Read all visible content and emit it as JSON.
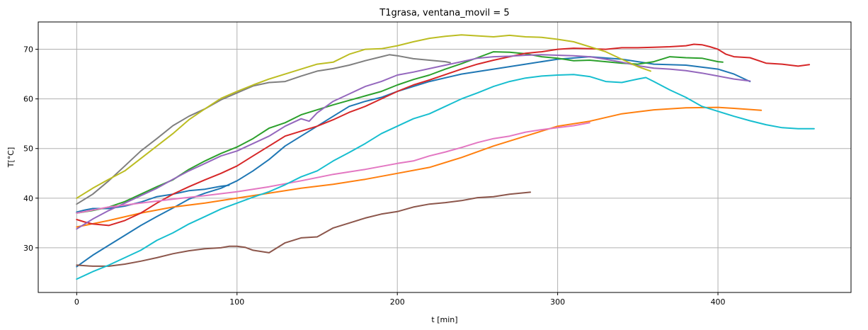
{
  "chart_data": {
    "type": "line",
    "title": "T1grasa, ventana_movil = 5",
    "xlabel": "t [min]",
    "ylabel": "T[°C]",
    "xlim": [
      -24,
      483
    ],
    "ylim": [
      21,
      75.5
    ],
    "xticks": [
      0,
      100,
      200,
      300,
      400
    ],
    "yticks": [
      30,
      40,
      50,
      60,
      70
    ],
    "grid": true,
    "series": [
      {
        "color": "#1f77b4",
        "x": [
          0,
          5,
          10,
          20,
          30,
          40,
          50,
          60,
          70,
          80,
          90,
          95
        ],
        "y": [
          37.2,
          37.6,
          37.9,
          37.9,
          38.4,
          39.2,
          40.3,
          40.8,
          41.5,
          41.8,
          42.4,
          42.6
        ]
      },
      {
        "color": "#1f77b4",
        "x": [
          0,
          10,
          20,
          30,
          40,
          50,
          60,
          70,
          80,
          90,
          100,
          110,
          120,
          130,
          140,
          150,
          160,
          170,
          180,
          190,
          200,
          220,
          240,
          260,
          280,
          300,
          320,
          340,
          360,
          380,
          400,
          410,
          420
        ],
        "y": [
          26.2,
          28.5,
          30.5,
          32.5,
          34.5,
          36.3,
          38,
          39.8,
          41,
          42,
          43.5,
          45.5,
          47.8,
          50.5,
          52.5,
          54.5,
          56.5,
          58.5,
          59.5,
          60.3,
          61.5,
          63.5,
          65,
          66,
          67,
          68,
          68.5,
          68,
          67,
          66.8,
          66,
          65,
          63.5
        ]
      },
      {
        "color": "#ff7f0e",
        "x": [
          0,
          20,
          40,
          60,
          80,
          100,
          120,
          140,
          160,
          180,
          200,
          220,
          240,
          260,
          280,
          300,
          320,
          340,
          360,
          380,
          400,
          410,
          427
        ],
        "y": [
          34.2,
          35.5,
          37,
          38.2,
          39.0,
          40.0,
          41.0,
          42.0,
          42.8,
          43.8,
          45.0,
          46.2,
          48.2,
          50.5,
          52.5,
          54.5,
          55.5,
          57,
          57.8,
          58.2,
          58.3,
          58.1,
          57.7
        ]
      },
      {
        "color": "#2ca02c",
        "x": [
          0,
          10,
          20,
          30,
          40,
          50,
          60,
          70,
          80,
          90,
          100,
          110,
          120,
          130,
          140,
          150,
          160,
          170,
          180,
          190,
          200,
          210,
          220,
          230,
          240,
          250,
          260,
          270,
          280,
          290,
          300,
          310,
          320,
          330,
          340,
          350,
          360,
          370,
          380,
          390,
          400,
          403
        ],
        "y": [
          37,
          37.5,
          38.2,
          39.3,
          40.8,
          42.3,
          43.7,
          45.8,
          47.5,
          49,
          50.3,
          52,
          54.1,
          55.2,
          56.8,
          57.8,
          58.8,
          59.7,
          60.6,
          61.5,
          62.8,
          63.9,
          64.8,
          66.0,
          67.1,
          68.3,
          69.5,
          69.4,
          69.1,
          68.5,
          68.2,
          67.7,
          67.8,
          67.5,
          67.2,
          67.0,
          67.5,
          68.5,
          68.3,
          68.2,
          67.5,
          67.4
        ]
      },
      {
        "color": "#d62728",
        "x": [
          0,
          5,
          10,
          20,
          30,
          40,
          50,
          60,
          70,
          80,
          90,
          100,
          110,
          120,
          130,
          140,
          150,
          160,
          170,
          180,
          190,
          200,
          210,
          220,
          230,
          240,
          250,
          260,
          270,
          280,
          290,
          300,
          310,
          320,
          330,
          340,
          350,
          360,
          370,
          380,
          385,
          390,
          395,
          400,
          405,
          410,
          420,
          430,
          440,
          450,
          457
        ],
        "y": [
          35.7,
          35.2,
          34.8,
          34.5,
          35.5,
          37,
          39,
          40.8,
          42.3,
          43.7,
          45,
          46.5,
          48.5,
          50.5,
          52.5,
          53.5,
          54.5,
          55.8,
          57.3,
          58.5,
          60,
          61.5,
          62.8,
          63.8,
          64.9,
          66,
          67,
          67.8,
          68.5,
          69.2,
          69.5,
          70,
          70.2,
          70.1,
          70,
          70.3,
          70.3,
          70.4,
          70.5,
          70.7,
          71,
          70.9,
          70.5,
          70,
          69,
          68.5,
          68.3,
          67.2,
          67,
          66.6,
          66.9
        ]
      },
      {
        "color": "#9467bd",
        "x": [
          0,
          10,
          20,
          30,
          40,
          50,
          60,
          70,
          80,
          90,
          100,
          110,
          120,
          130,
          140,
          145,
          150,
          160,
          170,
          180,
          190,
          200,
          210,
          220,
          230,
          240,
          250,
          260,
          270,
          280,
          290,
          300,
          310,
          320,
          330,
          340,
          350,
          360,
          370,
          380,
          390,
          400,
          410,
          420
        ],
        "y": [
          33.8,
          35.8,
          37.5,
          39,
          40.5,
          42,
          43.8,
          45.5,
          47,
          48.5,
          49.5,
          51,
          52.5,
          54.5,
          56,
          55.5,
          57.2,
          59.5,
          61,
          62.5,
          63.5,
          64.8,
          65.4,
          66.1,
          66.8,
          67.5,
          68.2,
          68.5,
          68.6,
          68.8,
          68.9,
          68.8,
          68.7,
          68.5,
          68.0,
          67.4,
          66.7,
          66.2,
          66.0,
          65.7,
          65.2,
          64.6,
          64.0,
          63.6
        ]
      },
      {
        "color": "#8c564b",
        "x": [
          0,
          10,
          20,
          30,
          40,
          50,
          60,
          70,
          80,
          90,
          95,
          100,
          105,
          110,
          120,
          130,
          140,
          150,
          160,
          170,
          180,
          190,
          200,
          210,
          220,
          230,
          240,
          250,
          260,
          270,
          283
        ],
        "y": [
          26.5,
          26.3,
          26.3,
          26.7,
          27.3,
          28,
          28.8,
          29.4,
          29.8,
          30.0,
          30.3,
          30.3,
          30.1,
          29.5,
          29.0,
          31.0,
          32.0,
          32.2,
          34.0,
          35.0,
          36.0,
          36.8,
          37.3,
          38.2,
          38.8,
          39.1,
          39.5,
          40.1,
          40.3,
          40.8,
          41.2
        ]
      },
      {
        "color": "#e377c2",
        "x": [
          0,
          20,
          40,
          60,
          80,
          100,
          120,
          140,
          160,
          180,
          200,
          210,
          220,
          230,
          240,
          250,
          260,
          270,
          280,
          290,
          300,
          310,
          320
        ],
        "y": [
          37,
          38.2,
          39.0,
          39.8,
          40.5,
          41.3,
          42.3,
          43.5,
          44.8,
          45.8,
          47,
          47.5,
          48.5,
          49.3,
          50.2,
          51.2,
          52,
          52.5,
          53.3,
          53.8,
          54.2,
          54.6,
          55.2
        ]
      },
      {
        "color": "#7f7f7f",
        "x": [
          0,
          10,
          20,
          30,
          40,
          50,
          60,
          70,
          80,
          90,
          100,
          110,
          120,
          130,
          140,
          150,
          160,
          170,
          180,
          190,
          195,
          200,
          210,
          220,
          230,
          233
        ],
        "y": [
          38.8,
          40.8,
          43.5,
          46.5,
          49.5,
          52,
          54.6,
          56.5,
          58,
          59.8,
          61.2,
          62.6,
          63.3,
          63.5,
          64.6,
          65.6,
          66.1,
          66.8,
          67.7,
          68.5,
          68.9,
          68.7,
          68.1,
          67.8,
          67.5,
          67.3
        ]
      },
      {
        "color": "#bcbd22",
        "x": [
          0,
          10,
          20,
          30,
          40,
          50,
          60,
          70,
          80,
          90,
          100,
          110,
          120,
          130,
          140,
          150,
          160,
          170,
          180,
          190,
          200,
          210,
          220,
          230,
          240,
          250,
          260,
          270,
          280,
          290,
          300,
          310,
          320,
          330,
          340,
          350,
          358
        ],
        "y": [
          40,
          42,
          43.8,
          45.5,
          48,
          50.5,
          53,
          55.8,
          58,
          60.1,
          61.5,
          62.8,
          64,
          65,
          66,
          67,
          67.4,
          69,
          70,
          70.1,
          70.7,
          71.5,
          72.2,
          72.6,
          72.9,
          72.7,
          72.5,
          72.8,
          72.5,
          72.4,
          72,
          71.5,
          70.5,
          69.5,
          68.0,
          66.5,
          65.6
        ]
      },
      {
        "color": "#17becf",
        "x": [
          0,
          10,
          20,
          30,
          40,
          50,
          60,
          70,
          80,
          90,
          100,
          110,
          120,
          130,
          140,
          150,
          160,
          170,
          180,
          190,
          200,
          210,
          220,
          230,
          240,
          250,
          260,
          270,
          280,
          290,
          300,
          310,
          320,
          330,
          340,
          350,
          355,
          360,
          370,
          380,
          390,
          400,
          410,
          420,
          430,
          440,
          450,
          460
        ],
        "y": [
          23.7,
          25.2,
          26.5,
          28,
          29.5,
          31.5,
          33,
          34.8,
          36.3,
          37.8,
          39,
          40.2,
          41.3,
          42.7,
          44.3,
          45.5,
          47.5,
          49.2,
          51,
          53,
          54.5,
          56,
          57,
          58.5,
          60,
          61.2,
          62.5,
          63.5,
          64.2,
          64.6,
          64.8,
          64.9,
          64.5,
          63.5,
          63.3,
          64.0,
          64.3,
          63.5,
          61.8,
          60.3,
          58.5,
          57.5,
          56.5,
          55.6,
          54.8,
          54.2,
          54.0,
          54.0
        ]
      }
    ]
  }
}
